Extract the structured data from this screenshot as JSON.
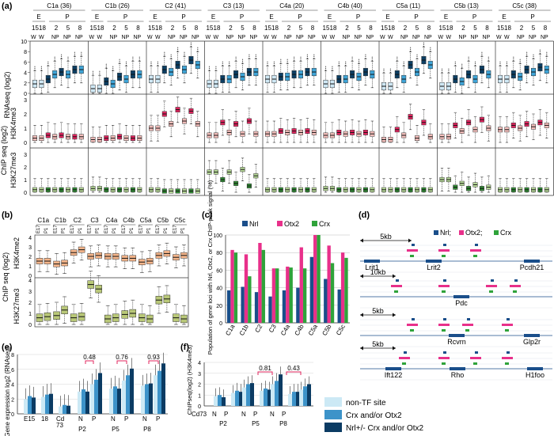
{
  "panel_labels": [
    "(a)",
    "(b)",
    "(c)",
    "(d)",
    "(e)",
    "(f)"
  ],
  "colors": {
    "blue_light": "#cfe8f5",
    "blue_mid": "#3fa5d8",
    "blue_dark": "#0c3e63",
    "pink_light": "#f6c0bd",
    "pink_mid": "#f08c88",
    "pink_dark": "#e0245e",
    "green_light": "#b9dc9a",
    "green_mid": "#7cbf4c",
    "green_dark": "#2f8a33",
    "nrl_blue": "#1a4e8a",
    "otx2_pink": "#e8308a",
    "crx_green": "#2fa33a",
    "orange_box": "#f5b58a",
    "olive_box": "#b9c878",
    "legend_light": "#cce9f5",
    "legend_mid": "#3d93c9",
    "legend_dark": "#0b3b63"
  },
  "panel_a": {
    "clusters": [
      "C1a (36)",
      "C1b (26)",
      "C2 (41)",
      "C3 (13)",
      "C4a (20)",
      "C4b (40)",
      "C5a (11)",
      "C5b (13)",
      "C5c (38)"
    ],
    "stage_e": "E",
    "stage_p": "P",
    "tick_labels_e": [
      "15",
      "18"
    ],
    "tick_labels_p": [
      "2",
      "5",
      "8"
    ],
    "sub_labels_e": [
      "W",
      "W"
    ],
    "sub_labels_p": [
      "NP",
      "NP",
      "NP"
    ],
    "rows": [
      {
        "ylabel": "RNAseq (log2)",
        "yticks": [
          "0",
          "2",
          "4",
          "6",
          "8",
          "10"
        ]
      },
      {
        "ylabel_1": "ChIP seq (log2)",
        "ylabel_2": "H3K4me3",
        "yticks": [
          "0",
          "1",
          "2",
          "3"
        ]
      },
      {
        "ylabel_2": "H3K27me3",
        "yticks": [
          "0",
          "1",
          "2",
          "3"
        ]
      }
    ]
  },
  "panel_b": {
    "clusters": [
      "C1a",
      "C1b",
      "C2",
      "C3",
      "C4a",
      "C4b",
      "C5a",
      "C5b",
      "C5c"
    ],
    "stages": [
      "E17",
      "P1"
    ],
    "ylabel_outer": "ChIP seq (log2)",
    "rows": [
      {
        "ylabel": "H3K4me2",
        "yticks": [
          "0",
          "1",
          "2",
          "3",
          "4"
        ]
      },
      {
        "ylabel": "H3K27me3",
        "yticks": [
          "0",
          "1",
          "2",
          "3",
          "4"
        ]
      }
    ]
  },
  "panel_c": {
    "chart_data": {
      "type": "bar",
      "title": "",
      "ylabel": "Population of gene loci with Nrl, Otx2, or Crx ChIP-peak signal (%)",
      "categories": [
        "C1a",
        "C1b",
        "C2",
        "C3",
        "C4a",
        "C4b",
        "C5a",
        "C5b",
        "C5c"
      ],
      "series": [
        {
          "name": "Nrl",
          "values": [
            37,
            41,
            35,
            30,
            37,
            40,
            75,
            50,
            38
          ]
        },
        {
          "name": "Otx2",
          "values": [
            83,
            78,
            91,
            62,
            64,
            86,
            100,
            88,
            80
          ]
        },
        {
          "name": "Crx",
          "values": [
            80,
            53,
            83,
            62,
            63,
            62,
            100,
            68,
            74
          ]
        }
      ],
      "ylim": [
        0,
        100
      ],
      "yticks": [
        "0",
        "20",
        "40",
        "60",
        "80",
        "100"
      ]
    }
  },
  "panel_d": {
    "legend": [
      "Nrl;",
      "Otx2;",
      "Crx"
    ],
    "tracks": [
      {
        "scale": "5kb",
        "genes": [
          "Lrit1",
          "Lrit2",
          "Pcdh21"
        ]
      },
      {
        "scale": "10kb",
        "genes": [
          "Pdc"
        ]
      },
      {
        "scale": "5kb",
        "genes": [
          "Rcvrn",
          "Glp2r"
        ]
      },
      {
        "scale": "5kb",
        "genes": [
          "Ift122",
          "Rho",
          "H1foo"
        ]
      }
    ]
  },
  "panel_e": {
    "chart_data": {
      "type": "bar",
      "ylabel": "Gene expression log2 (RNAseq)",
      "yticks": [
        "0",
        "2",
        "4",
        "6",
        "8"
      ],
      "ylim": [
        0,
        8
      ],
      "categories": [
        "E15",
        "18",
        "Cd73",
        "P2 N",
        "P2 P",
        "P5 N",
        "P5 P",
        "P8 N",
        "P8 P"
      ],
      "x_labels": [
        "E15",
        "18",
        "Cd",
        "73",
        "N",
        "P",
        "N",
        "P",
        "N",
        "P",
        "P2",
        "P5",
        "P8"
      ],
      "series": [
        {
          "name": "non-TF site",
          "values": [
            2.0,
            2.3,
            1.0,
            3.0,
            4.0,
            3.4,
            4.5,
            3.8,
            5.2
          ]
        },
        {
          "name": "Crx and/or Otx2",
          "values": [
            2.4,
            2.6,
            1.2,
            3.3,
            4.6,
            3.7,
            5.2,
            4.0,
            5.8
          ]
        },
        {
          "name": "Nrl+/- Crx and/or Otx2",
          "values": [
            2.2,
            2.7,
            1.1,
            3.0,
            5.5,
            3.4,
            6.1,
            4.1,
            6.8
          ]
        }
      ],
      "pvalues": [
        "0.48",
        "0.76",
        "0.93"
      ]
    }
  },
  "panel_f": {
    "chart_data": {
      "type": "bar",
      "ylabel": "ChIPseq(log2) (H3K4me3)",
      "yticks": [
        "0",
        "1",
        "2",
        "3",
        "4"
      ],
      "ylim": [
        0,
        4
      ],
      "categories": [
        "Cd73",
        "P2 N",
        "P2 P",
        "P5 N",
        "P5 P",
        "P8 N",
        "P8 P"
      ],
      "x_labels": [
        "Cd73",
        "N",
        "P",
        "N",
        "P",
        "N",
        "P",
        "P2",
        "P5",
        "P8"
      ],
      "series": [
        {
          "name": "non-TF site",
          "values": [
            0.9,
            1.2,
            1.7,
            1.4,
            2.0,
            1.1,
            1.5
          ]
        },
        {
          "name": "Crx and/or Otx2",
          "values": [
            1.0,
            1.4,
            2.0,
            1.6,
            2.3,
            1.3,
            1.8
          ]
        },
        {
          "name": "Nrl+/- Crx and/or Otx2",
          "values": [
            0.8,
            1.3,
            2.1,
            1.5,
            2.9,
            1.3,
            2.0
          ]
        }
      ],
      "pvalues": [
        "0.81",
        "0.43"
      ],
      "legend": [
        "non-TF site",
        "Crx and/or Otx2",
        "Nrl+/- Crx and/or Otx2"
      ]
    }
  }
}
